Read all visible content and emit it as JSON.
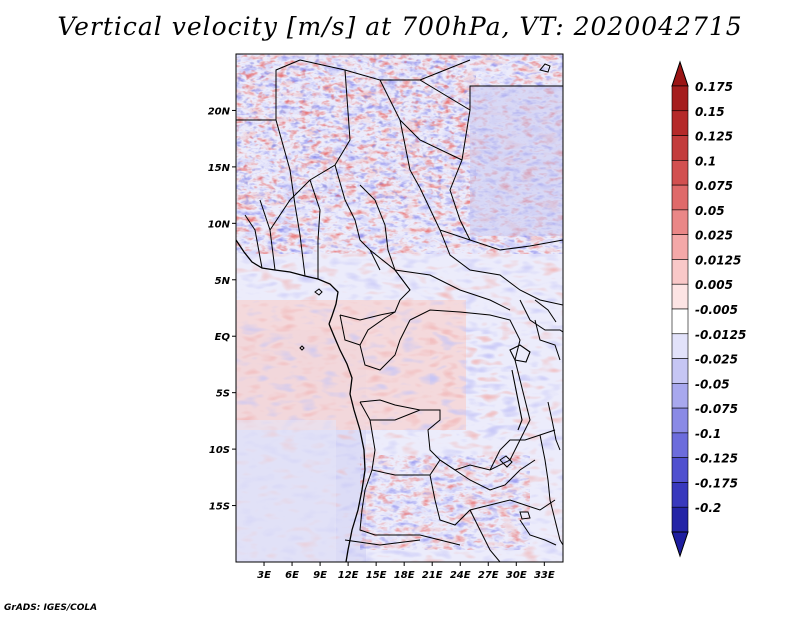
{
  "title": "Vertical velocity [m/s] at 700hPa, VT: 2020042715",
  "credit": "GrADS: IGES/COLA",
  "variable": {
    "name": "Vertical velocity",
    "units": "m/s",
    "level": "700hPa",
    "valid_time": "2020042715"
  },
  "map": {
    "lon_range": [
      0,
      35
    ],
    "lat_range": [
      -20,
      25
    ],
    "lat_ticks": [
      {
        "value": 20,
        "label": "20N"
      },
      {
        "value": 15,
        "label": "15N"
      },
      {
        "value": 10,
        "label": "10N"
      },
      {
        "value": 5,
        "label": "5N"
      },
      {
        "value": 0,
        "label": "EQ"
      },
      {
        "value": -5,
        "label": "5S"
      },
      {
        "value": -10,
        "label": "10S"
      },
      {
        "value": -15,
        "label": "15S"
      }
    ],
    "lon_ticks": [
      {
        "value": 3,
        "label": "3E"
      },
      {
        "value": 6,
        "label": "6E"
      },
      {
        "value": 9,
        "label": "9E"
      },
      {
        "value": 12,
        "label": "12E"
      },
      {
        "value": 15,
        "label": "15E"
      },
      {
        "value": 18,
        "label": "18E"
      },
      {
        "value": 21,
        "label": "21E"
      },
      {
        "value": 24,
        "label": "24E"
      },
      {
        "value": 27,
        "label": "27E"
      },
      {
        "value": 30,
        "label": "30E"
      },
      {
        "value": 33,
        "label": "33E"
      }
    ]
  },
  "colorbar": {
    "levels": [
      {
        "label": "0.175",
        "color": "#a51e1e"
      },
      {
        "label": "0.15",
        "color": "#b52a2a"
      },
      {
        "label": "0.125",
        "color": "#c33c3c"
      },
      {
        "label": "0.1",
        "color": "#d25050"
      },
      {
        "label": "0.075",
        "color": "#df6a6a"
      },
      {
        "label": "0.05",
        "color": "#ea8787"
      },
      {
        "label": "0.025",
        "color": "#f4a8a8"
      },
      {
        "label": "0.0125",
        "color": "#f9c8c8"
      },
      {
        "label": "0.005",
        "color": "#fde4e4"
      },
      {
        "label": "-0.005",
        "color": "#ffffff"
      },
      {
        "label": "-0.0125",
        "color": "#e2e2fa"
      },
      {
        "label": "-0.025",
        "color": "#c6c6f4"
      },
      {
        "label": "-0.05",
        "color": "#a8a8ee"
      },
      {
        "label": "-0.075",
        "color": "#8a8ae6"
      },
      {
        "label": "-0.1",
        "color": "#6c6cdc"
      },
      {
        "label": "-0.125",
        "color": "#5050cf"
      },
      {
        "label": "-0.175",
        "color": "#3838bd"
      },
      {
        "label": "-0.2",
        "color": "#2424a6"
      }
    ],
    "top_arrow_color": "#9b1515",
    "bottom_arrow_color": "#1e1ea0"
  },
  "colors": {
    "warm": "#d24b4b",
    "cool": "#5a5ad6",
    "neutral": "#ffffff",
    "border": "#000000"
  }
}
